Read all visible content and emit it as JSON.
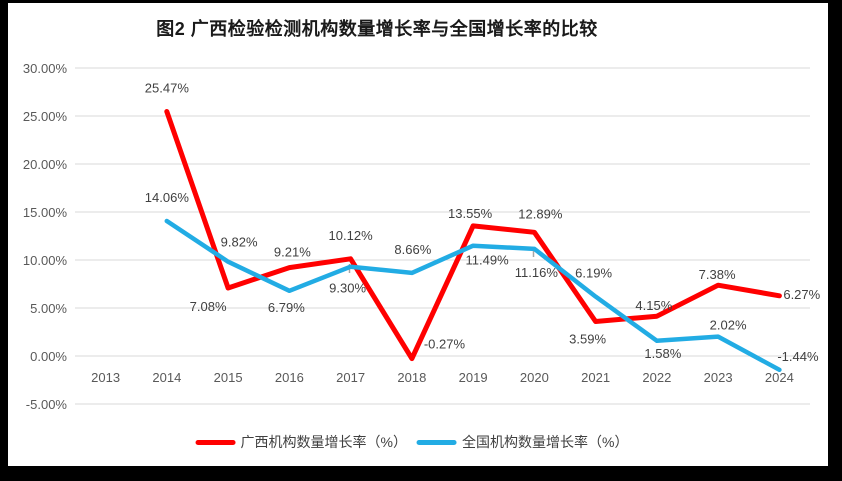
{
  "chart_data": {
    "type": "line",
    "title": "图2 广西检验检测机构数量增长率与全国增长率的比较",
    "categories": [
      "2013",
      "2014",
      "2015",
      "2016",
      "2017",
      "2018",
      "2019",
      "2020",
      "2021",
      "2022",
      "2023",
      "2024"
    ],
    "series": [
      {
        "name": "广西机构数量增长率（%）",
        "color": "#FF0000",
        "values": [
          null,
          25.47,
          7.08,
          9.21,
          10.12,
          -0.27,
          13.55,
          12.89,
          3.59,
          4.15,
          7.38,
          6.27
        ],
        "labels": [
          null,
          "25.47%",
          "7.08%",
          "9.21%",
          "10.12%",
          "-0.27%",
          "13.55%",
          "12.89%",
          "3.59%",
          "4.15%",
          "7.38%",
          "6.27%"
        ]
      },
      {
        "name": "全国机构数量增长率（%）",
        "color": "#22ACE4",
        "values": [
          null,
          14.06,
          9.82,
          6.79,
          9.3,
          8.66,
          11.49,
          11.16,
          6.19,
          1.58,
          2.02,
          -1.44
        ],
        "labels": [
          null,
          "14.06%",
          "9.82%",
          "6.79%",
          "9.30%",
          "8.66%",
          "11.49%",
          "11.16%",
          "6.19%",
          "1.58%",
          "2.02%",
          "-1.44%"
        ]
      }
    ],
    "y_axis": {
      "min": -5,
      "max": 30,
      "step": 5,
      "tick_labels": [
        "30.00%",
        "25.00%",
        "20.00%",
        "15.00%",
        "10.00%",
        "5.00%",
        "0.00%",
        "-5.00%"
      ]
    },
    "grid": true,
    "legend_position": "bottom",
    "colors": {
      "gridline": "#D9D9D9",
      "tick_text": "#595959",
      "label_text": "#404040",
      "frame": "#000000"
    }
  }
}
